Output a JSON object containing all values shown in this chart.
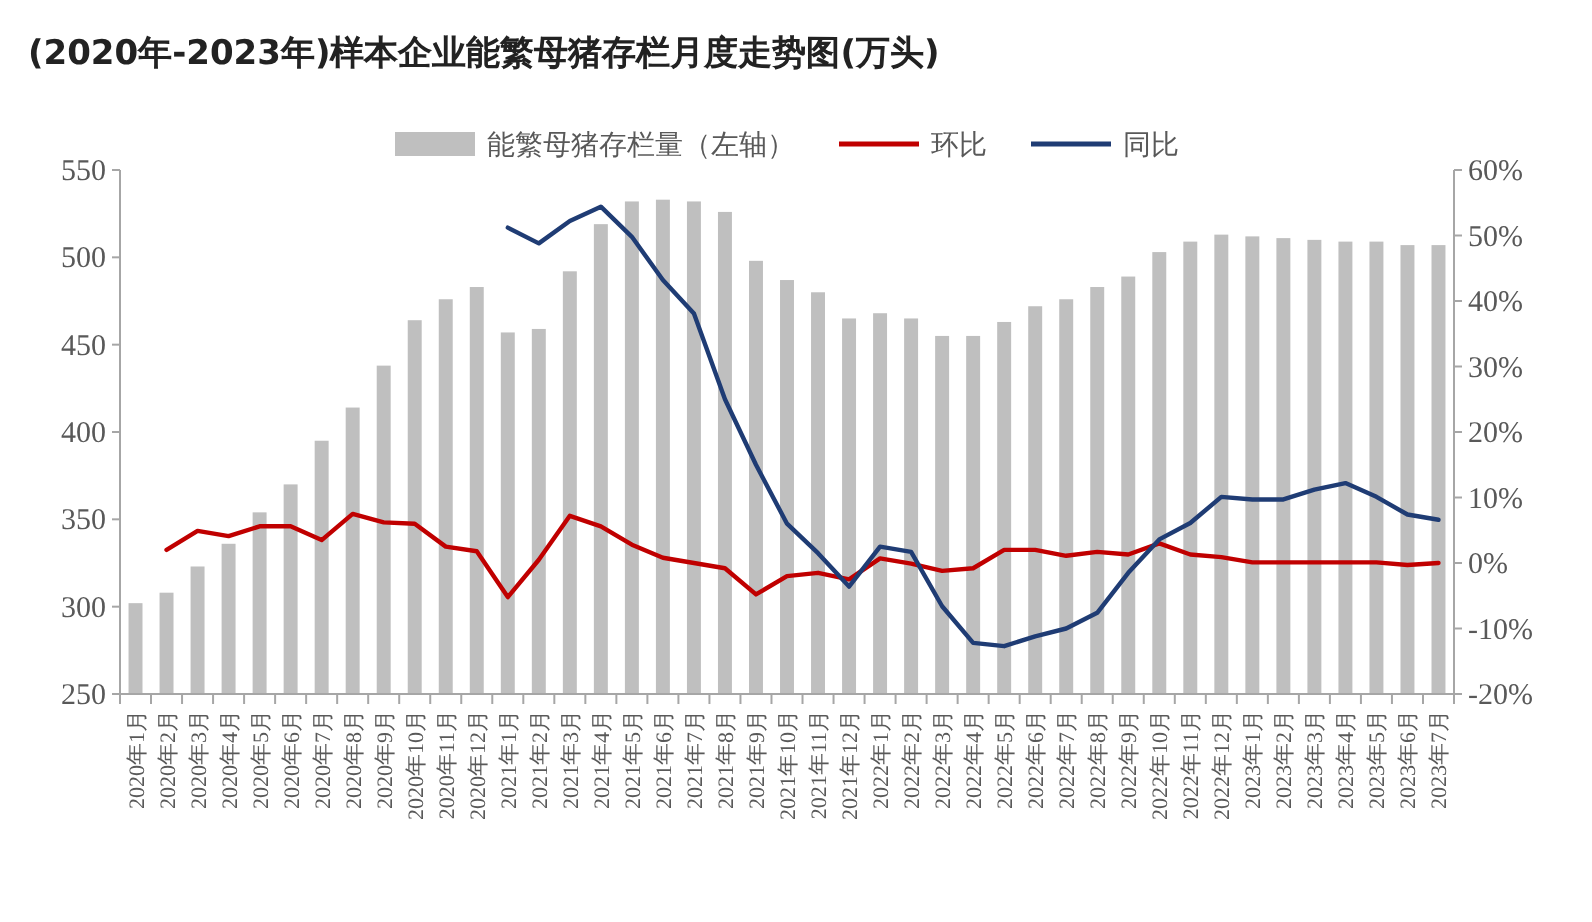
{
  "chart_data": {
    "type": "bar",
    "title": "(2020年-2023年)样本企业能繁母猪存栏月度走势图(万头)",
    "categories": [
      "2020年1月",
      "2020年2月",
      "2020年3月",
      "2020年4月",
      "2020年5月",
      "2020年6月",
      "2020年7月",
      "2020年8月",
      "2020年9月",
      "2020年10月",
      "2020年11月",
      "2020年12月",
      "2021年1月",
      "2021年2月",
      "2021年3月",
      "2021年4月",
      "2021年5月",
      "2021年6月",
      "2021年7月",
      "2021年8月",
      "2021年9月",
      "2021年10月",
      "2021年11月",
      "2021年12月",
      "2022年1月",
      "2022年2月",
      "2022年3月",
      "2022年4月",
      "2022年5月",
      "2022年6月",
      "2022年7月",
      "2022年8月",
      "2022年9月",
      "2022年10月",
      "2022年11月",
      "2022年12月",
      "2023年1月",
      "2023年2月",
      "2023年3月",
      "2023年4月",
      "2023年5月",
      "2023年6月",
      "2023年7月"
    ],
    "series": [
      {
        "name": "能繁母猪存栏量（左轴）",
        "color": "#bfbfbf",
        "values": [
          302,
          308,
          323,
          336,
          354,
          370,
          395,
          414,
          438,
          464,
          476,
          483,
          457,
          459,
          492,
          519,
          532,
          533,
          532,
          526,
          498,
          487,
          480,
          465,
          468,
          465,
          455,
          455,
          463,
          472,
          476,
          483,
          489,
          503,
          509,
          513,
          512,
          511,
          510,
          509,
          509,
          507,
          507
        ]
      },
      {
        "name": "环比",
        "type": "line",
        "axis": "y2",
        "color": "#c00000",
        "values": [
          null,
          2.0,
          4.9,
          4.1,
          5.6,
          5.6,
          3.5,
          7.5,
          6.2,
          6.0,
          2.5,
          1.8,
          -5.2,
          0.5,
          7.2,
          5.6,
          2.8,
          0.8,
          0,
          -0.8,
          -4.8,
          -2.0,
          -1.5,
          -2.5,
          0.7,
          -0.1,
          -1.2,
          -0.8,
          2.0,
          2.0,
          1.1,
          1.7,
          1.3,
          3.0,
          1.3,
          0.9,
          0.1,
          0.1,
          0.1,
          0.1,
          0.1,
          -0.3,
          0
        ]
      },
      {
        "name": "同比",
        "type": "line",
        "axis": "y2",
        "color": "#1f3c74",
        "values": [
          null,
          null,
          null,
          null,
          null,
          null,
          null,
          null,
          null,
          null,
          null,
          null,
          51.2,
          48.8,
          52.2,
          54.4,
          49.8,
          43.2,
          38.1,
          25,
          15,
          6,
          1.5,
          -3.6,
          2.5,
          1.7,
          -6.6,
          -12.2,
          -12.7,
          -11.2,
          -10.0,
          -7.6,
          -1.5,
          3.6,
          6.1,
          10.1,
          9.7,
          9.7,
          11.2,
          12.2,
          10.1,
          7.4,
          6.6
        ]
      }
    ],
    "ylim": [
      250,
      550
    ],
    "yticks": [
      250,
      300,
      350,
      400,
      450,
      500,
      550
    ],
    "y2lim": [
      -20,
      60
    ],
    "y2ticks": [
      {
        "value": -20,
        "label": "-20%"
      },
      {
        "value": -10,
        "label": "-10%"
      },
      {
        "value": 0,
        "label": "0%"
      },
      {
        "value": 10,
        "label": "10%"
      },
      {
        "value": 20,
        "label": "20%"
      },
      {
        "value": 30,
        "label": "30%"
      },
      {
        "value": 40,
        "label": "40%"
      },
      {
        "value": 50,
        "label": "50%"
      },
      {
        "value": 60,
        "label": "60%"
      }
    ],
    "legend": "top",
    "grid": false
  }
}
